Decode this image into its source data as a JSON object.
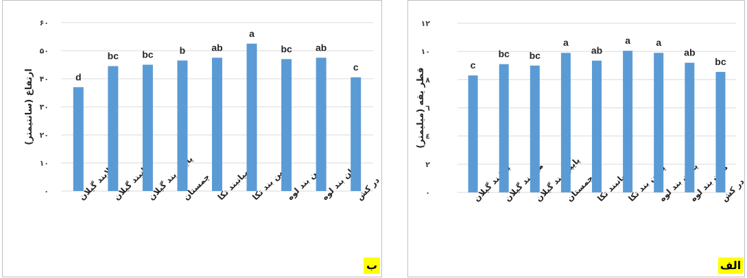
{
  "chart_data": [
    {
      "id": "b",
      "type": "bar",
      "panel_label": "ب",
      "ylabel": "ارتفاع (سانتیمتر)",
      "xlabel": "",
      "title": "",
      "ylim": [
        0,
        60
      ],
      "yticks": [
        0,
        10,
        20,
        30,
        40,
        50,
        60
      ],
      "ytick_labels": [
        "۰",
        "۱۰",
        "۲۰",
        "۳۰",
        "۴۰",
        "۵۰",
        "۶۰"
      ],
      "grid": true,
      "bar_color": "#5b9bd5",
      "categories": [
        "بالابند گیلان",
        "میانبند گیلان",
        "پایین بند گیلان",
        "چمستان",
        "میانبند تکا",
        "پایین بند تکا",
        "پایین بند لوه",
        "میان بند لوه",
        "در کش"
      ],
      "values": [
        37,
        44.5,
        45,
        46.5,
        47.5,
        52.5,
        47,
        47.5,
        40.5
      ],
      "data_labels": [
        "d",
        "bc",
        "bc",
        "b",
        "ab",
        "a",
        "bc",
        "ab",
        "c"
      ]
    },
    {
      "id": "a",
      "type": "bar",
      "panel_label": "الف",
      "ylabel": "قطر یقه (میلیمتر)",
      "xlabel": "",
      "title": "",
      "ylim": [
        0,
        12
      ],
      "yticks": [
        0,
        2,
        4,
        6,
        8,
        10,
        12
      ],
      "ytick_labels": [
        "۰",
        "۲",
        "٤",
        "٦",
        "۸",
        "۱۰",
        "۱۲"
      ],
      "grid": true,
      "bar_color": "#5b9bd5",
      "categories": [
        "بالابند گیلان",
        "میانبند گیلان",
        "پایین بند گیلان",
        "چمستان",
        "میانبند تکا",
        "پایین بند تکا",
        "پایین بند لوه",
        "میان بند لوه",
        "در کش"
      ],
      "values": [
        8.3,
        9.1,
        9.0,
        9.9,
        9.35,
        10.05,
        9.9,
        9.2,
        8.55
      ],
      "data_labels": [
        "c",
        "bc",
        "bc",
        "a",
        "ab",
        "a",
        "a",
        "ab",
        "bc"
      ]
    }
  ]
}
